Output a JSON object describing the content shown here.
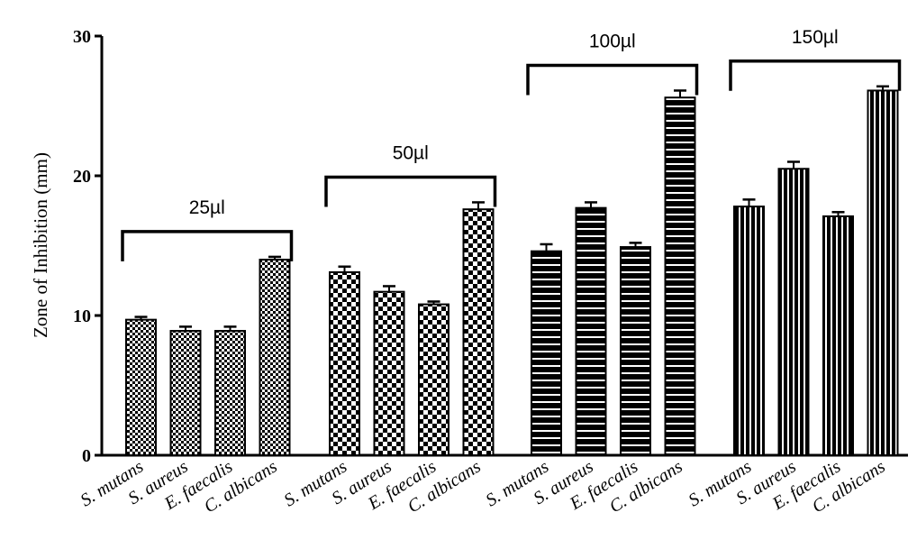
{
  "chart_data": {
    "type": "bar",
    "ylabel": "Zone of Inhibition (mm)",
    "ylim": [
      0,
      30
    ],
    "yticks": [
      0,
      10,
      20,
      30
    ],
    "grid": false,
    "categories": [
      "S. mutans",
      "S. aureus",
      "E. faecalis",
      "C. albicans"
    ],
    "groups": [
      {
        "name": "25µl",
        "pattern": "fine-checker",
        "values": [
          9.7,
          8.9,
          8.9,
          14.0
        ],
        "errors": [
          0.2,
          0.3,
          0.3,
          0.2
        ]
      },
      {
        "name": "50µl",
        "pattern": "coarse-checker",
        "values": [
          13.1,
          11.7,
          10.8,
          17.6
        ],
        "errors": [
          0.4,
          0.4,
          0.2,
          0.5
        ]
      },
      {
        "name": "100µl",
        "pattern": "horizontal-stripes",
        "values": [
          14.6,
          17.7,
          14.9,
          25.6
        ],
        "errors": [
          0.5,
          0.4,
          0.3,
          0.5
        ]
      },
      {
        "name": "150µl",
        "pattern": "vertical-stripes",
        "values": [
          17.8,
          20.5,
          17.1,
          26.1
        ],
        "errors": [
          0.5,
          0.5,
          0.3,
          0.3
        ]
      }
    ]
  }
}
